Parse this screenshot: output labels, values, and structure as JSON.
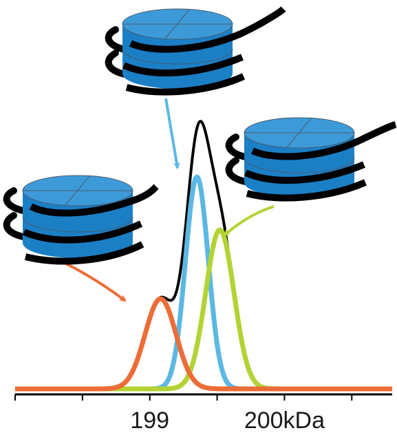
{
  "chart_data": {
    "type": "line",
    "title": "",
    "xlabel": "",
    "ylabel": "",
    "xlim": [
      198.0,
      200.8
    ],
    "ylim": [
      0,
      1.0
    ],
    "grid": false,
    "legend": "none",
    "x_ticks": [
      {
        "value": 198.0,
        "label": ""
      },
      {
        "value": 198.5,
        "label": ""
      },
      {
        "value": 199.0,
        "label": "199"
      },
      {
        "value": 199.5,
        "label": ""
      },
      {
        "value": 200.0,
        "label": "200kDa"
      },
      {
        "value": 200.5,
        "label": ""
      }
    ],
    "series": [
      {
        "key": "orange",
        "color": "#ec6d37",
        "peaks": [
          {
            "x": 199.08,
            "height": 0.34,
            "sigma": 0.115
          }
        ]
      },
      {
        "key": "blue",
        "color": "#5bb8e3",
        "peaks": [
          {
            "x": 199.35,
            "height": 0.8,
            "sigma": 0.085
          }
        ]
      },
      {
        "key": "green",
        "color": "#b3d334",
        "peaks": [
          {
            "x": 199.52,
            "height": 0.6,
            "sigma": 0.105
          }
        ]
      },
      {
        "key": "black",
        "color": "#000000",
        "sum_of": [
          "orange",
          "blue",
          "green"
        ]
      }
    ],
    "annotations": [
      {
        "key": "complex-left",
        "arrow_color": "#ec6d37",
        "points_to": "orange"
      },
      {
        "key": "complex-top",
        "arrow_color": "#5bb8e3",
        "points_to": "blue"
      },
      {
        "key": "complex-right",
        "arrow_color": "#b3d334",
        "points_to": "green"
      }
    ],
    "icon_colors": {
      "disc": "#1b7fc6",
      "disc_top": "#3d9ad9",
      "helix": "#000000"
    }
  }
}
